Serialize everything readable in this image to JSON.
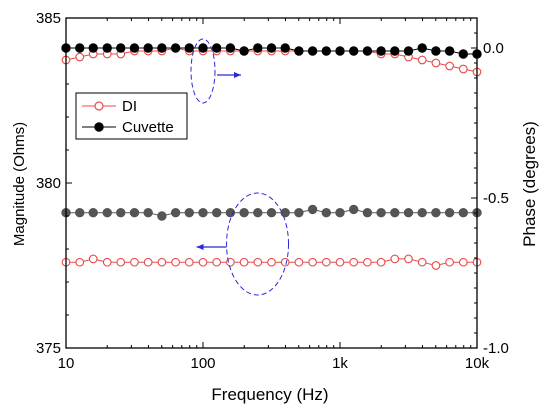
{
  "chart_data": {
    "type": "scatter",
    "title": "",
    "xlabel": "Frequency (Hz)",
    "ylabel_left": "Magnitude (Ohms)",
    "ylabel_right": "Phase (degrees)",
    "xscale": "log",
    "xlim": [
      10,
      10000
    ],
    "ylim_left": [
      375,
      385
    ],
    "ylim_right": [
      -1.0,
      0.1
    ],
    "x_ticks": [
      {
        "value": 10,
        "label": "10"
      },
      {
        "value": 100,
        "label": "100"
      },
      {
        "value": 1000,
        "label": "1k"
      },
      {
        "value": 10000,
        "label": "10k"
      }
    ],
    "y_left_ticks": [
      {
        "value": 375,
        "label": "375"
      },
      {
        "value": 380,
        "label": "380"
      },
      {
        "value": 385,
        "label": "385"
      }
    ],
    "y_right_ticks": [
      {
        "value": -1.0,
        "label": "-1.0"
      },
      {
        "value": -0.5,
        "label": "-0.5"
      },
      {
        "value": 0.0,
        "label": "0.0"
      }
    ],
    "legend_position": "upper-left",
    "series": [
      {
        "name": "DI",
        "quantity": "magnitude",
        "axis": "left",
        "marker": "open-circle",
        "color": "#e84a4a",
        "x": [
          10,
          12.6,
          15.8,
          20,
          25.1,
          31.6,
          39.8,
          50.1,
          63.1,
          79.4,
          100,
          125.9,
          158.5,
          199.5,
          251.2,
          316.2,
          398.1,
          501.2,
          631,
          794.3,
          1000,
          1258.9,
          1584.9,
          1995.3,
          2511.9,
          3162.3,
          3981.1,
          5011.9,
          6309.6,
          7943.3,
          10000
        ],
        "y": [
          377.6,
          377.6,
          377.7,
          377.6,
          377.6,
          377.6,
          377.6,
          377.6,
          377.6,
          377.6,
          377.6,
          377.6,
          377.6,
          377.6,
          377.6,
          377.6,
          377.6,
          377.6,
          377.6,
          377.6,
          377.6,
          377.6,
          377.6,
          377.6,
          377.7,
          377.7,
          377.6,
          377.5,
          377.6,
          377.6,
          377.6
        ]
      },
      {
        "name": "Cuvette",
        "quantity": "magnitude",
        "axis": "left",
        "marker": "filled-circle",
        "color": "#555555",
        "x": [
          10,
          12.6,
          15.8,
          20,
          25.1,
          31.6,
          39.8,
          50.1,
          63.1,
          79.4,
          100,
          125.9,
          158.5,
          199.5,
          251.2,
          316.2,
          398.1,
          501.2,
          631,
          794.3,
          1000,
          1258.9,
          1584.9,
          1995.3,
          2511.9,
          3162.3,
          3981.1,
          5011.9,
          6309.6,
          7943.3,
          10000
        ],
        "y": [
          379.1,
          379.1,
          379.1,
          379.1,
          379.1,
          379.1,
          379.1,
          379.0,
          379.1,
          379.1,
          379.1,
          379.1,
          379.1,
          379.1,
          379.1,
          379.1,
          379.1,
          379.1,
          379.2,
          379.1,
          379.1,
          379.2,
          379.1,
          379.1,
          379.1,
          379.1,
          379.1,
          379.1,
          379.1,
          379.1,
          379.1
        ]
      },
      {
        "name": "DI",
        "quantity": "phase",
        "axis": "right",
        "marker": "open-circle",
        "color": "#e84a4a",
        "x": [
          10,
          12.6,
          15.8,
          20,
          25.1,
          31.6,
          39.8,
          50.1,
          63.1,
          79.4,
          100,
          125.9,
          158.5,
          199.5,
          251.2,
          316.2,
          398.1,
          501.2,
          631,
          794.3,
          1000,
          1258.9,
          1584.9,
          1995.3,
          2511.9,
          3162.3,
          3981.1,
          5011.9,
          6309.6,
          7943.3,
          10000
        ],
        "y": [
          -0.04,
          -0.03,
          -0.02,
          -0.02,
          -0.02,
          -0.01,
          -0.01,
          -0.01,
          0.0,
          -0.01,
          -0.01,
          -0.01,
          -0.01,
          -0.01,
          -0.01,
          -0.01,
          -0.01,
          -0.01,
          -0.01,
          -0.01,
          -0.01,
          -0.01,
          -0.01,
          -0.02,
          -0.02,
          -0.03,
          -0.04,
          -0.05,
          -0.06,
          -0.07,
          -0.08
        ]
      },
      {
        "name": "Cuvette",
        "quantity": "phase",
        "axis": "right",
        "marker": "filled-circle",
        "color": "#000000",
        "x": [
          10,
          12.6,
          15.8,
          20,
          25.1,
          31.6,
          39.8,
          50.1,
          63.1,
          79.4,
          100,
          125.9,
          158.5,
          199.5,
          251.2,
          316.2,
          398.1,
          501.2,
          631,
          794.3,
          1000,
          1258.9,
          1584.9,
          1995.3,
          2511.9,
          3162.3,
          3981.1,
          5011.9,
          6309.6,
          7943.3,
          10000
        ],
        "y": [
          0.0,
          0.0,
          0.0,
          0.0,
          0.0,
          0.0,
          0.0,
          0.0,
          0.0,
          0.0,
          0.0,
          0.0,
          0.0,
          -0.01,
          0.0,
          0.0,
          0.0,
          -0.01,
          -0.01,
          -0.01,
          -0.01,
          -0.01,
          -0.01,
          -0.01,
          -0.01,
          -0.01,
          0.0,
          -0.01,
          -0.01,
          -0.02,
          -0.02
        ]
      }
    ],
    "legend": [
      {
        "label": "DI",
        "marker": "open-circle",
        "color": "#e84a4a"
      },
      {
        "label": "Cuvette",
        "marker": "filled-circle",
        "color": "#000000"
      }
    ],
    "annotations": [
      {
        "kind": "dashed-ellipse",
        "color": "#2a2ad6",
        "x": 100,
        "y_right": -0.04,
        "arrow": "right",
        "points_to": "phase"
      },
      {
        "kind": "dashed-ellipse",
        "color": "#2a2ad6",
        "x": 250,
        "y_left": 379.0,
        "arrow": "left",
        "points_to": "magnitude"
      }
    ]
  }
}
